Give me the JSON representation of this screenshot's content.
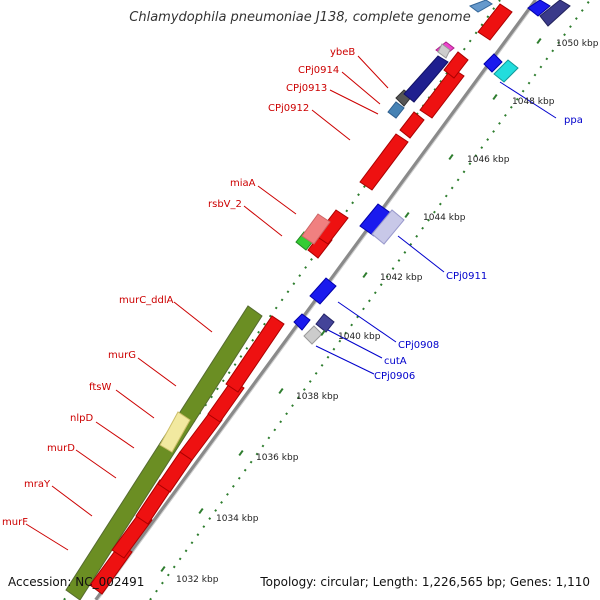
{
  "title": "Chlamydophila pneumoniae J138, complete genome",
  "footer": {
    "accession": "Accession: NC_002491",
    "topology": "Topology: circular; Length: 1,226,565 bp; Genes: 1,110"
  },
  "kbp_labels": [
    "1032 kbp",
    "1034 kbp",
    "1036 kbp",
    "1038 kbp",
    "1040 kbp",
    "1042 kbp",
    "1044 kbp",
    "1046 kbp",
    "1048 kbp",
    "1050 kbp"
  ],
  "genes_left": [
    "ybeB",
    "CPj0914",
    "CPj0913",
    "CPj0912",
    "miaA",
    "rsbV_2",
    "murC_ddlA",
    "murG",
    "ftsW",
    "nlpD",
    "murD",
    "mraY",
    "murF"
  ],
  "genes_right": [
    "ppa",
    "CPj0911",
    "CPj0908",
    "cutA",
    "CPj0906"
  ],
  "colors": {
    "forward_gene": "#ee1111",
    "reverse_gene": "#1a1aee",
    "operon_block": "#6b8e23",
    "label_red": "#cc0000",
    "label_blue": "#0000cc",
    "backbone": "#999999",
    "tick": "#2e7d2e"
  }
}
